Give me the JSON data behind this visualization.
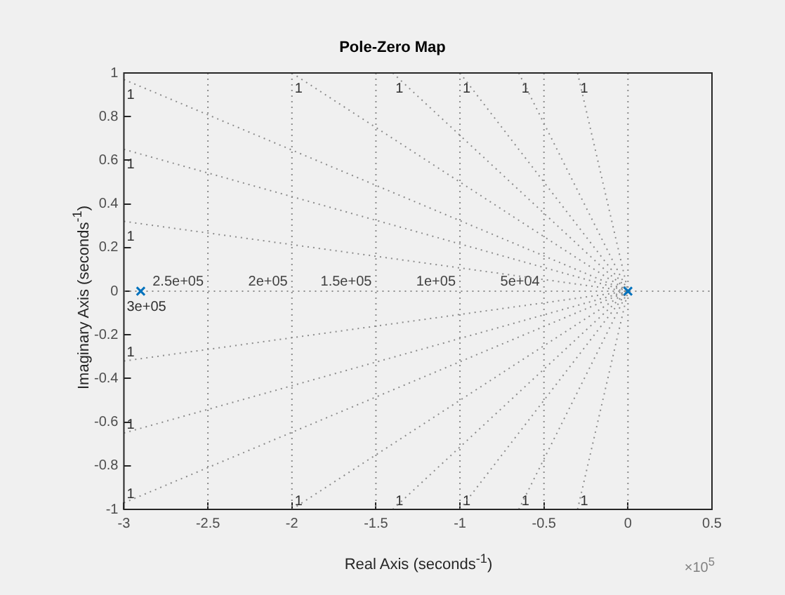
{
  "chart_data": {
    "type": "scatter",
    "title": "Pole-Zero Map",
    "xlabel": "Real Axis (seconds$^{-1}$)",
    "ylabel": "Imaginary Axis (seconds$^{-1}$)",
    "xlim": [
      -3,
      0.5
    ],
    "xticks": [
      -3,
      -2.5,
      -2,
      -1.5,
      -1,
      -0.5,
      0,
      0.5
    ],
    "ylim": [
      -1,
      1
    ],
    "yticks": [
      -1,
      -0.8,
      -0.6,
      -0.4,
      -0.2,
      0,
      0.2,
      0.4,
      0.6,
      0.8,
      1
    ],
    "grid": false,
    "legend": false,
    "marker": "cross",
    "series": [
      {
        "type": "scatter",
        "color": "#0072bd",
        "x": [
          -2.9,
          0
        ],
        "values": [
          0,
          0
        ]
      },
      {
        "type": "line",
        "color": "#8c8c8c",
        "line_style": "dotted",
        "marker": "none",
        "x": [
          -3,
          0
        ],
        "values": [
          0.97,
          0
        ]
      },
      {
        "type": "line",
        "color": "#8c8c8c",
        "line_style": "dotted",
        "marker": "none",
        "x": [
          -3,
          0
        ],
        "values": [
          0.65,
          0
        ]
      },
      {
        "type": "line",
        "color": "#8c8c8c",
        "line_style": "dotted",
        "marker": "none",
        "x": [
          -3,
          0
        ],
        "values": [
          0.32,
          0
        ]
      },
      {
        "type": "line",
        "color": "#8c8c8c",
        "line_style": "dotted",
        "marker": "none",
        "x": [
          -2,
          0
        ],
        "values": [
          1,
          0
        ]
      },
      {
        "type": "line",
        "color": "#8c8c8c",
        "line_style": "dotted",
        "marker": "none",
        "x": [
          -1.4,
          0
        ],
        "values": [
          1,
          0
        ]
      },
      {
        "type": "line",
        "color": "#8c8c8c",
        "line_style": "dotted",
        "marker": "none",
        "x": [
          -1,
          0
        ],
        "values": [
          1,
          0
        ]
      },
      {
        "type": "line",
        "color": "#8c8c8c",
        "line_style": "dotted",
        "marker": "none",
        "x": [
          -0.65,
          0
        ],
        "values": [
          1,
          0
        ]
      },
      {
        "type": "line",
        "color": "#8c8c8c",
        "line_style": "dotted",
        "marker": "none",
        "x": [
          -0.3,
          0
        ],
        "values": [
          1,
          0
        ]
      },
      {
        "type": "line",
        "color": "#8c8c8c",
        "line_style": "dotted",
        "marker": "none",
        "x": [
          -3,
          0
        ],
        "values": [
          -0.97,
          0
        ]
      },
      {
        "type": "line",
        "color": "#8c8c8c",
        "line_style": "dotted",
        "marker": "none",
        "x": [
          -3,
          0
        ],
        "values": [
          -0.65,
          0
        ]
      },
      {
        "type": "line",
        "color": "#8c8c8c",
        "line_style": "dotted",
        "marker": "none",
        "x": [
          -3,
          0
        ],
        "values": [
          -0.32,
          0
        ]
      },
      {
        "type": "line",
        "color": "#8c8c8c",
        "line_style": "dotted",
        "marker": "none",
        "x": [
          -2,
          0
        ],
        "values": [
          -1,
          0
        ]
      },
      {
        "type": "line",
        "color": "#8c8c8c",
        "line_style": "dotted",
        "marker": "none",
        "x": [
          -1.4,
          0
        ],
        "values": [
          -1,
          0
        ]
      },
      {
        "type": "line",
        "color": "#8c8c8c",
        "line_style": "dotted",
        "marker": "none",
        "x": [
          -1,
          0
        ],
        "values": [
          -1,
          0
        ]
      },
      {
        "type": "line",
        "color": "#8c8c8c",
        "line_style": "dotted",
        "marker": "none",
        "x": [
          -0.65,
          0
        ],
        "values": [
          -1,
          0
        ]
      },
      {
        "type": "line",
        "color": "#8c8c8c",
        "line_style": "dotted",
        "marker": "none",
        "x": [
          -0.3,
          0
        ],
        "values": [
          -1,
          0
        ]
      }
    ],
    "ref_lines": [
      {
        "axis": "x",
        "value": -2.5,
        "label": "2.5e+05",
        "color": "#8c8c8c",
        "line_style": "dotted"
      },
      {
        "axis": "x",
        "value": -2,
        "label": "2e+05",
        "color": "#8c8c8c",
        "line_style": "dotted"
      },
      {
        "axis": "x",
        "value": -1.5,
        "label": "1.5e+05",
        "color": "#8c8c8c",
        "line_style": "dotted"
      },
      {
        "axis": "x",
        "value": -1,
        "label": "1e+05",
        "color": "#8c8c8c",
        "line_style": "dotted"
      },
      {
        "axis": "x",
        "value": -0.5,
        "label": "5e+04",
        "color": "#8c8c8c",
        "line_style": "dotted"
      },
      {
        "axis": "x",
        "value": 0,
        "label": null,
        "color": "#8c8c8c",
        "line_style": "dotted"
      },
      {
        "axis": "y",
        "value": 0,
        "label": null,
        "color": "#8c8c8c",
        "line_style": "dotted"
      }
    ],
    "annotations": [
      {
        "text": "3e+05",
        "x": -3,
        "y": 0
      },
      {
        "text": "1",
        "x": -3,
        "y": 0.97
      },
      {
        "text": "1",
        "x": -3,
        "y": 0.65
      },
      {
        "text": "1",
        "x": -3,
        "y": 0.32
      },
      {
        "text": "1",
        "x": -2,
        "y": 1
      },
      {
        "text": "1",
        "x": -1.4,
        "y": 1
      },
      {
        "text": "1",
        "x": -1,
        "y": 1
      },
      {
        "text": "1",
        "x": -0.65,
        "y": 1
      },
      {
        "text": "1",
        "x": -0.3,
        "y": 1
      },
      {
        "text": "1",
        "x": -3,
        "y": -0.97
      },
      {
        "text": "1",
        "x": -3,
        "y": -0.65
      },
      {
        "text": "1",
        "x": -3,
        "y": -0.32
      },
      {
        "text": "1",
        "x": -2,
        "y": -1
      },
      {
        "text": "1",
        "x": -1.4,
        "y": -1
      },
      {
        "text": "1",
        "x": -1,
        "y": -1
      },
      {
        "text": "1",
        "x": -0.65,
        "y": -1
      },
      {
        "text": "1",
        "x": -0.3,
        "y": -1
      },
      "×10$^{5}$"
    ]
  }
}
